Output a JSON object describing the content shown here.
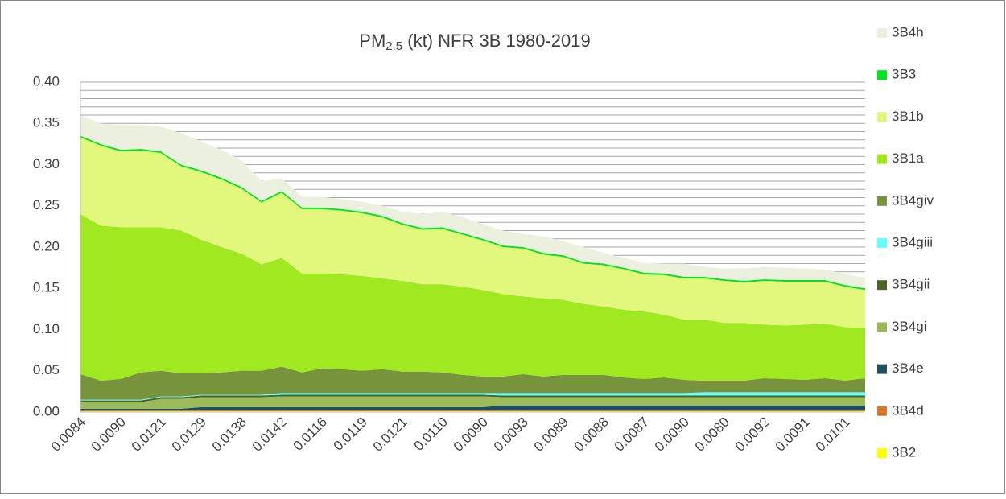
{
  "chart_data": {
    "type": "stacked_area",
    "title": "PM",
    "title_subscript": "2.5",
    "title_rest": " (kt) NFR 3B 1980-2019",
    "categories": [
      "0.0084",
      null,
      "0.0090",
      null,
      "0.0121",
      null,
      "0.0129",
      null,
      "0.0138",
      null,
      "0.0142",
      null,
      "0.0116",
      null,
      "0.0119",
      null,
      "0.0121",
      null,
      "0.0110",
      null,
      "0.0090",
      null,
      "0.0093",
      null,
      "0.0089",
      null,
      "0.0088",
      null,
      "0.0087",
      null,
      "0.0090",
      null,
      "0.0080",
      null,
      "0.0092",
      null,
      "0.0091",
      null,
      "0.0101",
      null
    ],
    "ylim": [
      0,
      0.4
    ],
    "yticks": [
      {
        "value": 0,
        "label": "0.00"
      },
      {
        "value": 0.05,
        "label": "0.05"
      },
      {
        "value": 0.1,
        "label": "0.10"
      },
      {
        "value": 0.15,
        "label": "0.15"
      },
      {
        "value": 0.2,
        "label": "0.20"
      },
      {
        "value": 0.25,
        "label": "0.25"
      },
      {
        "value": 0.3,
        "label": "0.30"
      },
      {
        "value": 0.35,
        "label": "0.35"
      },
      {
        "value": 0.4,
        "label": "0.40"
      }
    ],
    "grid_ticks": [
      0,
      0.01,
      0.02,
      0.03,
      0.04,
      0.05,
      0.06,
      0.07,
      0.08,
      0.09,
      0.1,
      0.11,
      0.12,
      0.13,
      0.14,
      0.15,
      0.16,
      0.17,
      0.18,
      0.19,
      0.2,
      0.21,
      0.22,
      0.23,
      0.24,
      0.25,
      0.26,
      0.27,
      0.28,
      0.29,
      0.3,
      0.31,
      0.32,
      0.33,
      0.34,
      0.35,
      0.36,
      0.37,
      0.38,
      0.39,
      0.4
    ],
    "grid": true,
    "legend": "right",
    "series": [
      {
        "name": "3B2",
        "color": "#ffff00",
        "values": [
          0.001,
          0.001,
          0.001,
          0.001,
          0.001,
          0.001,
          0.001,
          0.001,
          0.001,
          0.001,
          0.001,
          0.001,
          0.001,
          0.001,
          0.001,
          0.001,
          0.001,
          0.001,
          0.001,
          0.001,
          0.001,
          0.001,
          0.001,
          0.001,
          0.001,
          0.001,
          0.001,
          0.001,
          0.001,
          0.001,
          0.001,
          0.001,
          0.001,
          0.001,
          0.001,
          0.001,
          0.001,
          0.001,
          0.001,
          0.001
        ]
      },
      {
        "name": "3B4d",
        "color": "#d9782f",
        "values": [
          0.001,
          0.001,
          0.001,
          0.001,
          0.001,
          0.001,
          0.001,
          0.001,
          0.001,
          0.001,
          0.001,
          0.001,
          0.001,
          0.001,
          0.001,
          0.001,
          0.001,
          0.001,
          0.001,
          0.001,
          0.001,
          0.001,
          0.001,
          0.001,
          0.001,
          0.001,
          0.001,
          0.001,
          0.001,
          0.001,
          0.001,
          0.001,
          0.001,
          0.001,
          0.001,
          0.001,
          0.001,
          0.001,
          0.001,
          0.001
        ]
      },
      {
        "name": "3B4e",
        "color": "#1f4e5f",
        "values": [
          0.002,
          0.002,
          0.002,
          0.002,
          0.002,
          0.002,
          0.004,
          0.004,
          0.004,
          0.004,
          0.004,
          0.004,
          0.004,
          0.004,
          0.004,
          0.004,
          0.004,
          0.004,
          0.004,
          0.004,
          0.004,
          0.006,
          0.006,
          0.006,
          0.006,
          0.006,
          0.006,
          0.006,
          0.006,
          0.006,
          0.006,
          0.006,
          0.006,
          0.006,
          0.006,
          0.006,
          0.006,
          0.006,
          0.006,
          0.006
        ]
      },
      {
        "name": "3B4gi",
        "color": "#9bbb59",
        "values": [
          0.008,
          0.008,
          0.008,
          0.008,
          0.012,
          0.012,
          0.012,
          0.012,
          0.012,
          0.012,
          0.013,
          0.013,
          0.013,
          0.013,
          0.013,
          0.013,
          0.013,
          0.013,
          0.013,
          0.013,
          0.013,
          0.01,
          0.01,
          0.01,
          0.01,
          0.01,
          0.01,
          0.01,
          0.01,
          0.01,
          0.01,
          0.01,
          0.01,
          0.01,
          0.01,
          0.01,
          0.01,
          0.01,
          0.01,
          0.01
        ]
      },
      {
        "name": "3B4gii",
        "color": "#4f6228",
        "values": [
          0.002,
          0.002,
          0.002,
          0.002,
          0.002,
          0.002,
          0.002,
          0.002,
          0.002,
          0.002,
          0.002,
          0.002,
          0.002,
          0.002,
          0.002,
          0.002,
          0.002,
          0.002,
          0.002,
          0.002,
          0.002,
          0.002,
          0.002,
          0.002,
          0.002,
          0.002,
          0.002,
          0.002,
          0.002,
          0.002,
          0.002,
          0.002,
          0.002,
          0.002,
          0.002,
          0.002,
          0.002,
          0.002,
          0.002,
          0.002
        ]
      },
      {
        "name": "3B4giii",
        "color": "#66ffff",
        "values": [
          0.001,
          0.001,
          0.001,
          0.001,
          0.001,
          0.001,
          0.001,
          0.001,
          0.001,
          0.001,
          0.002,
          0.002,
          0.002,
          0.002,
          0.002,
          0.002,
          0.002,
          0.002,
          0.002,
          0.002,
          0.002,
          0.003,
          0.003,
          0.003,
          0.003,
          0.003,
          0.003,
          0.003,
          0.003,
          0.003,
          0.003,
          0.004,
          0.004,
          0.004,
          0.004,
          0.004,
          0.004,
          0.004,
          0.004,
          0.004
        ]
      },
      {
        "name": "3B4giv",
        "color": "#77933c",
        "values": [
          0.031,
          0.023,
          0.025,
          0.033,
          0.031,
          0.028,
          0.026,
          0.027,
          0.029,
          0.029,
          0.032,
          0.025,
          0.03,
          0.029,
          0.027,
          0.029,
          0.026,
          0.026,
          0.025,
          0.022,
          0.02,
          0.02,
          0.023,
          0.02,
          0.022,
          0.022,
          0.022,
          0.019,
          0.017,
          0.019,
          0.016,
          0.014,
          0.014,
          0.014,
          0.017,
          0.016,
          0.015,
          0.017,
          0.014,
          0.017
        ]
      },
      {
        "name": "3B1a",
        "color": "#a0e820",
        "values": [
          0.194,
          0.188,
          0.184,
          0.176,
          0.174,
          0.173,
          0.162,
          0.152,
          0.142,
          0.129,
          0.132,
          0.12,
          0.115,
          0.115,
          0.115,
          0.11,
          0.11,
          0.106,
          0.107,
          0.107,
          0.105,
          0.1,
          0.094,
          0.095,
          0.091,
          0.086,
          0.083,
          0.082,
          0.082,
          0.076,
          0.073,
          0.074,
          0.07,
          0.07,
          0.065,
          0.065,
          0.067,
          0.066,
          0.065,
          0.061
        ]
      },
      {
        "name": "3B1b",
        "color": "#e2f87c",
        "values": [
          0.093,
          0.097,
          0.092,
          0.093,
          0.09,
          0.078,
          0.082,
          0.082,
          0.079,
          0.075,
          0.079,
          0.078,
          0.078,
          0.077,
          0.076,
          0.074,
          0.068,
          0.066,
          0.067,
          0.063,
          0.06,
          0.057,
          0.058,
          0.053,
          0.052,
          0.049,
          0.05,
          0.049,
          0.045,
          0.048,
          0.05,
          0.05,
          0.051,
          0.049,
          0.053,
          0.053,
          0.052,
          0.051,
          0.049,
          0.046
        ]
      },
      {
        "name": "3B3",
        "color": "#00e61e",
        "values": [
          0.002,
          0.002,
          0.002,
          0.002,
          0.002,
          0.002,
          0.002,
          0.002,
          0.002,
          0.002,
          0.002,
          0.002,
          0.002,
          0.002,
          0.002,
          0.002,
          0.002,
          0.002,
          0.002,
          0.002,
          0.002,
          0.002,
          0.002,
          0.002,
          0.002,
          0.002,
          0.002,
          0.002,
          0.002,
          0.002,
          0.002,
          0.002,
          0.002,
          0.002,
          0.002,
          0.002,
          0.002,
          0.002,
          0.002,
          0.002
        ]
      },
      {
        "name": "3B4h",
        "color": "#ebf1de",
        "values": [
          0.025,
          0.025,
          0.03,
          0.029,
          0.03,
          0.038,
          0.035,
          0.034,
          0.032,
          0.024,
          0.015,
          0.013,
          0.013,
          0.012,
          0.012,
          0.012,
          0.014,
          0.017,
          0.019,
          0.019,
          0.018,
          0.018,
          0.016,
          0.02,
          0.017,
          0.018,
          0.013,
          0.012,
          0.012,
          0.012,
          0.016,
          0.012,
          0.013,
          0.015,
          0.015,
          0.015,
          0.014,
          0.013,
          0.013,
          0.013
        ]
      }
    ]
  }
}
